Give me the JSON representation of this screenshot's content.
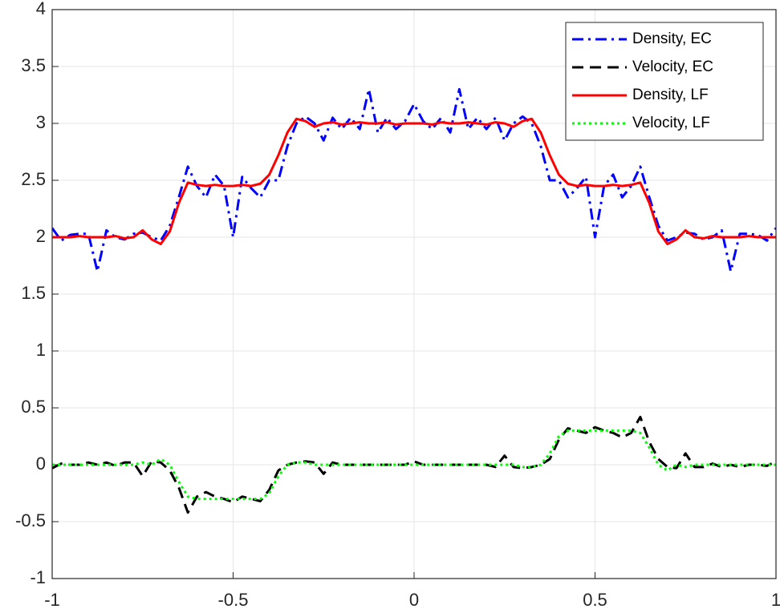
{
  "chart_data": {
    "type": "line",
    "x": [
      -1,
      -0.975,
      -0.95,
      -0.925,
      -0.9,
      -0.875,
      -0.85,
      -0.825,
      -0.8,
      -0.775,
      -0.75,
      -0.725,
      -0.7,
      -0.675,
      -0.65,
      -0.625,
      -0.6,
      -0.575,
      -0.55,
      -0.525,
      -0.5,
      -0.475,
      -0.45,
      -0.425,
      -0.4,
      -0.375,
      -0.35,
      -0.325,
      -0.3,
      -0.275,
      -0.25,
      -0.225,
      -0.2,
      -0.175,
      -0.15,
      -0.125,
      -0.1,
      -0.075,
      -0.05,
      -0.025,
      0,
      0.025,
      0.05,
      0.075,
      0.1,
      0.125,
      0.15,
      0.175,
      0.2,
      0.225,
      0.25,
      0.275,
      0.3,
      0.325,
      0.35,
      0.375,
      0.4,
      0.425,
      0.45,
      0.475,
      0.5,
      0.525,
      0.55,
      0.575,
      0.6,
      0.625,
      0.65,
      0.675,
      0.7,
      0.725,
      0.75,
      0.775,
      0.8,
      0.825,
      0.85,
      0.875,
      0.9,
      0.925,
      0.95,
      0.975,
      1
    ],
    "series": [
      {
        "name": "Density, EC",
        "color": "#0000ff",
        "style": "dashdot",
        "values": [
          2.08,
          1.97,
          2.02,
          2.03,
          2.03,
          1.7,
          2.06,
          2.0,
          1.98,
          2.03,
          2.04,
          2.0,
          1.97,
          2.1,
          2.35,
          2.62,
          2.45,
          2.35,
          2.55,
          2.45,
          2.0,
          2.53,
          2.43,
          2.35,
          2.5,
          2.5,
          2.8,
          3.0,
          3.06,
          3.0,
          2.85,
          3.05,
          2.95,
          3.05,
          2.95,
          3.3,
          2.92,
          3.05,
          2.95,
          3.02,
          3.17,
          3.02,
          2.95,
          3.05,
          2.92,
          3.3,
          2.95,
          3.05,
          2.95,
          3.05,
          2.85,
          3.0,
          3.06,
          3.0,
          2.8,
          2.5,
          2.5,
          2.35,
          2.43,
          2.53,
          2.0,
          2.45,
          2.55,
          2.35,
          2.45,
          2.62,
          2.35,
          2.1,
          1.97,
          2.0,
          2.04,
          2.03,
          1.98,
          2.0,
          2.06,
          1.7,
          2.03,
          2.03,
          2.02,
          1.97,
          2.08
        ]
      },
      {
        "name": "Velocity, EC",
        "color": "#000000",
        "style": "dashed",
        "values": [
          -0.03,
          0.01,
          0,
          0,
          0.02,
          0,
          0.02,
          -0.01,
          0.02,
          0.02,
          -0.1,
          0.03,
          0.02,
          -0.05,
          -0.2,
          -0.42,
          -0.28,
          -0.24,
          -0.28,
          -0.3,
          -0.33,
          -0.28,
          -0.3,
          -0.32,
          -0.22,
          -0.05,
          0,
          0.02,
          0.03,
          0.02,
          -0.08,
          0.02,
          0,
          0,
          0,
          0,
          0,
          0,
          0,
          0,
          0.03,
          0,
          0,
          0,
          0,
          0,
          0,
          0,
          0,
          -0.02,
          0.08,
          -0.02,
          -0.03,
          -0.02,
          0,
          0.05,
          0.22,
          0.32,
          0.3,
          0.28,
          0.33,
          0.3,
          0.28,
          0.24,
          0.28,
          0.42,
          0.2,
          0.05,
          -0.02,
          -0.03,
          0.1,
          -0.02,
          -0.02,
          0.01,
          -0.02,
          0,
          -0.02,
          0,
          0,
          -0.01,
          0.03
        ]
      },
      {
        "name": "Density, LF",
        "color": "#ff0000",
        "style": "solid",
        "values": [
          2.0,
          2.0,
          2.0,
          2.01,
          2.0,
          2.0,
          2.0,
          2.01,
          1.99,
          2.0,
          2.06,
          1.98,
          1.94,
          2.05,
          2.3,
          2.48,
          2.46,
          2.45,
          2.46,
          2.45,
          2.45,
          2.46,
          2.45,
          2.47,
          2.55,
          2.72,
          2.92,
          3.04,
          3.02,
          2.97,
          3.0,
          3.01,
          2.99,
          3.0,
          3.01,
          3.0,
          3.0,
          3.01,
          2.99,
          3.0,
          3.0,
          3.0,
          2.99,
          3.01,
          3.0,
          3.0,
          3.01,
          3.0,
          2.99,
          3.01,
          3.0,
          2.97,
          3.02,
          3.04,
          2.92,
          2.72,
          2.55,
          2.47,
          2.45,
          2.46,
          2.45,
          2.45,
          2.46,
          2.45,
          2.46,
          2.48,
          2.3,
          2.05,
          1.94,
          1.98,
          2.06,
          2.0,
          1.99,
          2.01,
          2.0,
          2.0,
          2.0,
          2.01,
          2.0,
          2.0,
          2.0
        ]
      },
      {
        "name": "Velocity, LF",
        "color": "#00ff00",
        "style": "dotted",
        "values": [
          0,
          0,
          0,
          0,
          0,
          0,
          0,
          0,
          0,
          0,
          0.02,
          0,
          0.05,
          0,
          -0.15,
          -0.28,
          -0.3,
          -0.3,
          -0.3,
          -0.3,
          -0.3,
          -0.3,
          -0.3,
          -0.3,
          -0.25,
          -0.1,
          0,
          0.02,
          0.02,
          0,
          0,
          0,
          0,
          0,
          0,
          0,
          0,
          0,
          0,
          0,
          0,
          0,
          0,
          0,
          0,
          0,
          0,
          0,
          0,
          0,
          0,
          0,
          -0.02,
          -0.02,
          0,
          0.1,
          0.25,
          0.3,
          0.3,
          0.3,
          0.3,
          0.3,
          0.3,
          0.3,
          0.3,
          0.28,
          0.15,
          0,
          -0.05,
          0,
          -0.02,
          0,
          0,
          0,
          0,
          0,
          0,
          0,
          0,
          0,
          0
        ]
      }
    ],
    "xlim": [
      -1,
      1
    ],
    "xticks": [
      -1,
      -0.5,
      0,
      0.5,
      1
    ],
    "ylim": [
      -1,
      4
    ],
    "yticks": [
      -1,
      -0.5,
      0,
      0.5,
      1,
      1.5,
      2,
      2.5,
      3,
      3.5,
      4
    ],
    "grid": true,
    "legend": "northeast"
  }
}
